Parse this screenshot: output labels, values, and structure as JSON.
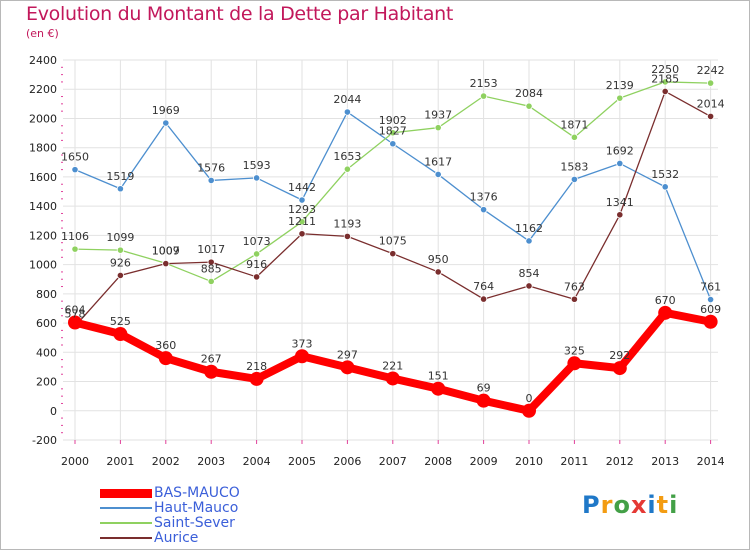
{
  "header": {
    "title": "Evolution du Montant de la Dette par Habitant",
    "subtitle": "(en €)"
  },
  "colors": {
    "title": "#c2185b",
    "grid": "#e2e2e2",
    "axis_ticks": "#e0409a"
  },
  "logo": {
    "letters": [
      "P",
      "r",
      "o",
      "x",
      "i",
      "t",
      "i"
    ],
    "colors": [
      "#1f78c8",
      "#f39c12",
      "#43a047",
      "#e53935",
      "#1f78c8",
      "#f39c12",
      "#43a047"
    ]
  },
  "chart_data": {
    "type": "line",
    "title": "Evolution du Montant de la Dette par Habitant",
    "subtitle": "(en €)",
    "xlabel": "",
    "ylabel": "",
    "x": [
      "2000",
      "2001",
      "2002",
      "2003",
      "2004",
      "2005",
      "2006",
      "2007",
      "2008",
      "2009",
      "2010",
      "2011",
      "2012",
      "2013",
      "2014"
    ],
    "ylim": [
      -200,
      2400
    ],
    "yticks": [
      -200,
      0,
      200,
      400,
      600,
      800,
      1000,
      1200,
      1400,
      1600,
      1800,
      2000,
      2200,
      2400
    ],
    "grid": true,
    "legend_position": "bottom-left",
    "series": [
      {
        "name": "BAS-MAUCO",
        "color": "#ff0000",
        "emphasis": true,
        "values": [
          604,
          525,
          360,
          267,
          218,
          373,
          297,
          221,
          151,
          69,
          0,
          325,
          292,
          670,
          609
        ],
        "labels": [
          "604",
          "525",
          "360",
          "267",
          "218",
          "373",
          "297",
          "221",
          "151",
          "69",
          "0",
          "325",
          "292",
          "670",
          "609"
        ]
      },
      {
        "name": "Haut-Mauco",
        "color": "#4d8fcf",
        "emphasis": false,
        "values": [
          1650,
          1519,
          1969,
          1576,
          1593,
          1442,
          2044,
          1827,
          1617,
          1376,
          1162,
          1583,
          1692,
          1532,
          761
        ],
        "labels": [
          "1650",
          "1519",
          "1969",
          "1576",
          "1593",
          "1442",
          "2044",
          "1827",
          "1617",
          "1376",
          "1162",
          "1583",
          "1692",
          "1532",
          "761"
        ]
      },
      {
        "name": "Saint-Sever",
        "color": "#8fd160",
        "emphasis": false,
        "values": [
          1106,
          1099,
          1009,
          885,
          1073,
          1293,
          1653,
          1902,
          1937,
          2153,
          2084,
          1871,
          2139,
          2250,
          2242
        ],
        "labels": [
          "1106",
          "1099",
          "1009",
          "885",
          "1073",
          "1293",
          "1653",
          "1902",
          "1937",
          "2153",
          "2084",
          "1871",
          "2139",
          "2250",
          "2242"
        ]
      },
      {
        "name": "Aurice",
        "color": "#7a2e2e",
        "emphasis": false,
        "values": [
          578,
          926,
          1007,
          1017,
          916,
          1211,
          1193,
          1075,
          950,
          764,
          854,
          763,
          1341,
          2185,
          2014
        ],
        "labels": [
          "578",
          "926",
          "1007",
          "1017",
          "916",
          "1211",
          "1193",
          "1075",
          "950",
          "764",
          "854",
          "763",
          "1341",
          "2185",
          "2014"
        ]
      }
    ]
  }
}
